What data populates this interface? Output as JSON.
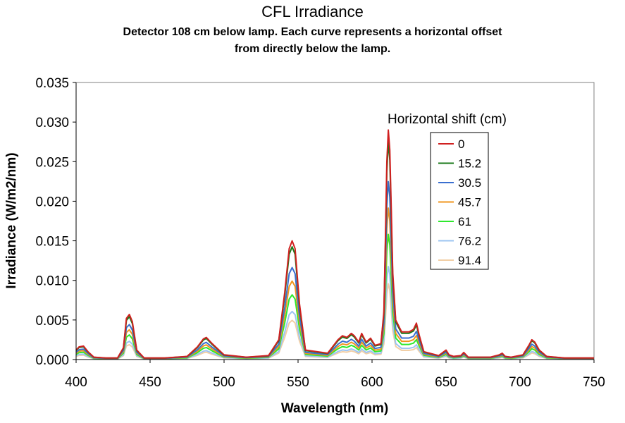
{
  "chart_data": {
    "type": "line",
    "title": "CFL Irradiance",
    "subtitle_line1": "Detector 108 cm below lamp.  Each curve represents a horizontal offset",
    "subtitle_line2": "from directly below the lamp.",
    "xlabel": "Wavelength (nm)",
    "ylabel": "Irradiance (W/m2/nm)",
    "xlim": [
      400,
      750
    ],
    "ylim": [
      0,
      0.035
    ],
    "x_ticks": [
      "400",
      "450",
      "500",
      "550",
      "600",
      "650",
      "700",
      "750"
    ],
    "y_ticks": [
      "0.000",
      "0.005",
      "0.010",
      "0.015",
      "0.020",
      "0.025",
      "0.030",
      "0.035"
    ],
    "legend_title": "Horizontal shift (cm)",
    "legend_position": "upper-right",
    "baseline_shape": {
      "description": "normalized spectral shape of the 0 cm curve; each series is shape scaled by its scale factor",
      "wavelengths": [
        400,
        402,
        405,
        408,
        412,
        420,
        428,
        432,
        434,
        436,
        438,
        441,
        446,
        460,
        475,
        482,
        486,
        488,
        492,
        500,
        515,
        530,
        537,
        541,
        544,
        546,
        548,
        551,
        555,
        570,
        577,
        580,
        583,
        586,
        588,
        591,
        593,
        596,
        599,
        602,
        606,
        608,
        609,
        610,
        611,
        612,
        613,
        614,
        616,
        620,
        625,
        628,
        630,
        632,
        635,
        645,
        650,
        652,
        655,
        660,
        662,
        665,
        680,
        686,
        688,
        690,
        694,
        702,
        706,
        708,
        710,
        713,
        718,
        730,
        750
      ],
      "values": [
        0.0012,
        0.0016,
        0.0017,
        0.001,
        0.0003,
        0.0002,
        0.0002,
        0.0015,
        0.0052,
        0.0057,
        0.0048,
        0.0012,
        0.0002,
        0.0002,
        0.0004,
        0.0016,
        0.0026,
        0.0028,
        0.002,
        0.0006,
        0.0003,
        0.0005,
        0.0025,
        0.0085,
        0.014,
        0.015,
        0.014,
        0.007,
        0.0012,
        0.0008,
        0.0025,
        0.003,
        0.0028,
        0.0033,
        0.003,
        0.0022,
        0.0033,
        0.0022,
        0.0027,
        0.0018,
        0.002,
        0.006,
        0.015,
        0.025,
        0.029,
        0.0265,
        0.019,
        0.011,
        0.005,
        0.0035,
        0.0035,
        0.0038,
        0.0046,
        0.003,
        0.001,
        0.0005,
        0.0012,
        0.0006,
        0.0004,
        0.0005,
        0.0009,
        0.0003,
        0.0003,
        0.0006,
        0.0008,
        0.0004,
        0.0003,
        0.0006,
        0.0018,
        0.0025,
        0.0022,
        0.0012,
        0.0004,
        0.0002,
        0.0002
      ]
    },
    "series": [
      {
        "name": "0",
        "color": "#d02020",
        "scale": 1.0
      },
      {
        "name": "15.2",
        "color": "#1a7a1a",
        "scale": 0.95
      },
      {
        "name": "30.5",
        "color": "#3a6fd0",
        "scale": 0.775
      },
      {
        "name": "45.7",
        "color": "#f0961e",
        "scale": 0.66
      },
      {
        "name": "61",
        "color": "#2ee82e",
        "scale": 0.545
      },
      {
        "name": "76.2",
        "color": "#9cc4f2",
        "scale": 0.405
      },
      {
        "name": "91.4",
        "color": "#f2cfa6",
        "scale": 0.33
      }
    ]
  }
}
